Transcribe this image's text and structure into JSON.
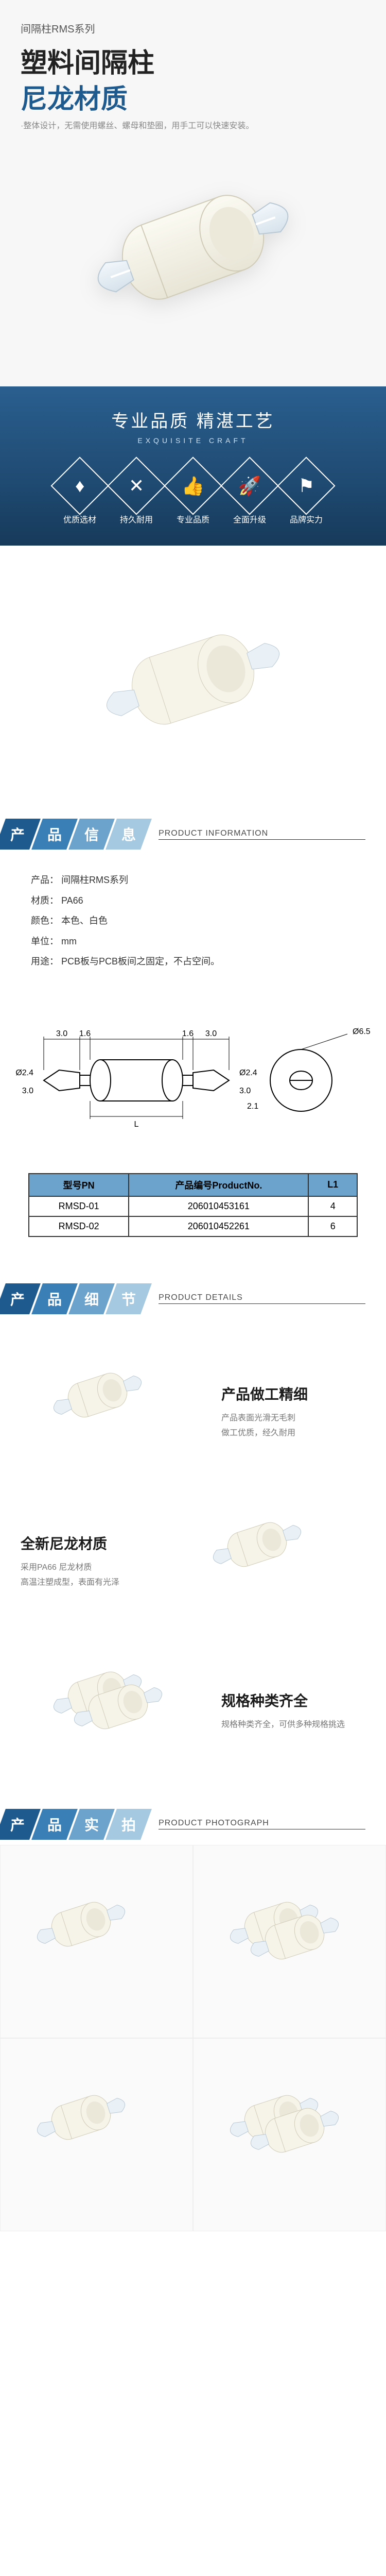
{
  "hero": {
    "series_label": "间隔柱RMS系列",
    "title1": "塑料间隔柱",
    "title2": "尼龙材质",
    "title2_color": "#1f5a8e",
    "subtitle": "·整体设计，无需使用螺丝、螺母和垫圈，用手工可以快速安装。"
  },
  "craft": {
    "title": "专业品质  精湛工艺",
    "subtitle": "EXQUISITE CRAFT",
    "items": [
      {
        "icon": "♦",
        "label": "优质选材"
      },
      {
        "icon": "✕",
        "label": "持久耐用"
      },
      {
        "icon": "👍",
        "label": "专业品质"
      },
      {
        "icon": "🚀",
        "label": "全面升级"
      },
      {
        "icon": "⚑",
        "label": "品牌实力"
      }
    ]
  },
  "sections": {
    "info": {
      "zh": [
        "产",
        "品",
        "信",
        "息"
      ],
      "en": "PRODUCT INFORMATION"
    },
    "detail": {
      "zh": [
        "产",
        "品",
        "细",
        "节"
      ],
      "en": "PRODUCT DETAILS"
    },
    "photo": {
      "zh": [
        "产",
        "品",
        "实",
        "拍"
      ],
      "en": "PRODUCT PHOTOGRAPH"
    }
  },
  "info": {
    "lines": [
      "产品：  间隔柱RMS系列",
      "材质：  PA66",
      "颜色：  本色、白色",
      "单位：  mm",
      "用途：  PCB板与PCB板间之固定，不占空间。"
    ]
  },
  "spec": {
    "columns": [
      "型号PN",
      "产品编号ProductNo.",
      "L1"
    ],
    "rows": [
      [
        "RMSD-01",
        "206010453161",
        "4"
      ],
      [
        "RMSD-02",
        "206010452261",
        "6"
      ]
    ],
    "header_bg": "#6ba3cc"
  },
  "diagram": {
    "dims": [
      "3.0",
      "1.6",
      "1.6",
      "3.0",
      "Ø2.4",
      "Ø2.4",
      "2.1",
      "L",
      "Ø6.5",
      "6.5"
    ]
  },
  "details": [
    {
      "title": "产品做工精细",
      "desc": "产品表面光滑无毛刺\n做工优质，经久耐用"
    },
    {
      "title": "全新尼龙材质",
      "desc": "采用PA66 尼龙材质\n高温注塑成型，表面有光泽"
    },
    {
      "title": "规格种类齐全",
      "desc": "规格种类齐全，可供多种规格挑选"
    }
  ],
  "colors": {
    "brand_dark": "#1f5a8e",
    "brand_mid": "#3a7fb5",
    "nylon_body": "#f4f2e8",
    "nylon_clip": "#e8eff4"
  }
}
